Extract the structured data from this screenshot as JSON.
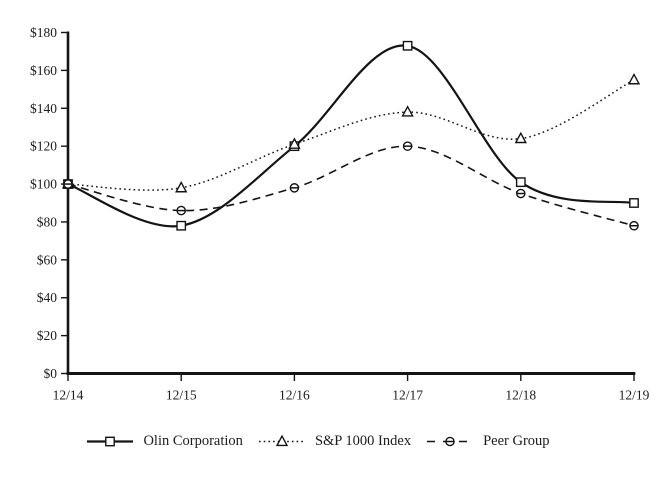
{
  "figure": {
    "background": "#ffffff",
    "ink_color": "#141414"
  },
  "chart_data": {
    "type": "line",
    "title": "",
    "x_categories": [
      "12/14",
      "12/15",
      "12/16",
      "12/17",
      "12/18",
      "12/19"
    ],
    "y_ticks": [
      0,
      20,
      40,
      60,
      80,
      100,
      120,
      140,
      160,
      180
    ],
    "y_tick_labels": [
      "$0",
      "$20",
      "$40",
      "$60",
      "$80",
      "$100",
      "$120",
      "$140",
      "$160",
      "$180"
    ],
    "ylim": [
      0,
      180
    ],
    "grid": false,
    "legend_position": "bottom",
    "line_smoothing": "spline",
    "series": [
      {
        "name": "Olin Corporation",
        "marker": "square",
        "line_style": "solid",
        "color": "#141414",
        "values": [
          100,
          78,
          120,
          173,
          101,
          90
        ]
      },
      {
        "name": "S&P 1000 Index",
        "marker": "triangle",
        "line_style": "dotted",
        "color": "#141414",
        "values": [
          100,
          98,
          121,
          138,
          124,
          155
        ]
      },
      {
        "name": "Peer Group",
        "marker": "circle",
        "line_style": "dashed",
        "color": "#141414",
        "values": [
          100,
          86,
          98,
          120,
          95,
          78
        ]
      }
    ]
  }
}
